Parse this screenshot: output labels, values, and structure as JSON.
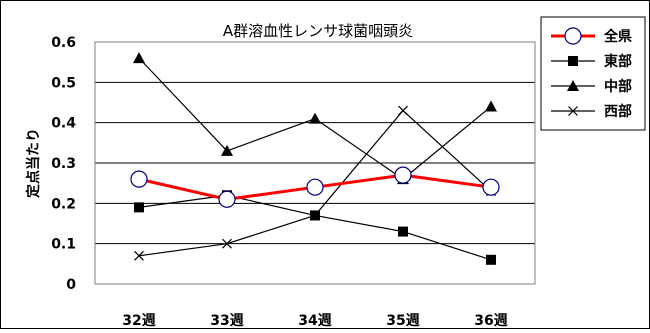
{
  "chart_data": {
    "type": "line",
    "title": "A群溶血性レンサ球菌咽頭炎",
    "ylabel": "定点当たり",
    "xlabel": "",
    "categories": [
      "32週",
      "33週",
      "34週",
      "35週",
      "36週"
    ],
    "ylim": [
      0,
      0.6
    ],
    "yticks": [
      "0",
      "0.1",
      "0.2",
      "0.3",
      "0.4",
      "0.5",
      "0.6"
    ],
    "grid": "horizontal",
    "legend_position": "top-right",
    "series": [
      {
        "name": "全県",
        "values": [
          0.26,
          0.21,
          0.24,
          0.27,
          0.24
        ],
        "color": "#ff0000",
        "marker": "open-circle"
      },
      {
        "name": "東部",
        "values": [
          0.19,
          0.22,
          0.17,
          0.13,
          0.06
        ],
        "color": "#000000",
        "marker": "square"
      },
      {
        "name": "中部",
        "values": [
          0.56,
          0.33,
          0.41,
          0.26,
          0.44
        ],
        "color": "#000000",
        "marker": "triangle"
      },
      {
        "name": "西部",
        "values": [
          0.07,
          0.1,
          0.17,
          0.43,
          0.23
        ],
        "color": "#000000",
        "marker": "x"
      }
    ]
  }
}
